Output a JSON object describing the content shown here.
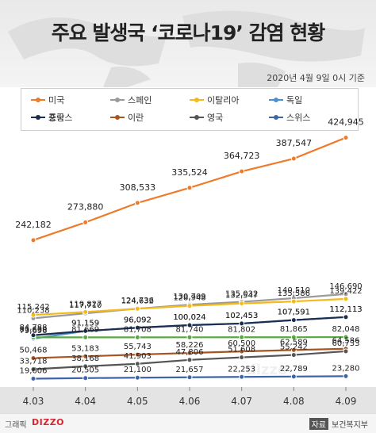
{
  "header": {
    "title": "주요 발생국 ‘코로나19’ 감염 현황",
    "date_note": "2020년 4월 9일 0시 기준"
  },
  "footer": {
    "brand_prefix": "그래픽",
    "brand_logo": "DIZZO",
    "source_tag": "자료",
    "source_text": "보건복지부"
  },
  "watermark": "dizzo",
  "chart_data": {
    "type": "line",
    "x": [
      "4.03",
      "4.04",
      "4.05",
      "4.06",
      "4.07",
      "4.08",
      "4.09"
    ],
    "y_scale": "broken (0–150,000 compressed; 150,000–430,000 expanded)",
    "grid": false,
    "legend_position": "top",
    "series": [
      {
        "name": "미국",
        "color": "#ee7b2a",
        "values": [
          242182,
          273880,
          308533,
          335524,
          364723,
          387547,
          424945
        ]
      },
      {
        "name": "스페인",
        "color": "#9a9a9a",
        "values": [
          110238,
          117710,
          124736,
          130709,
          135032,
          140510,
          146690
        ]
      },
      {
        "name": "이탈리아",
        "color": "#f5b918",
        "values": [
          115242,
          119827,
          124632,
          128948,
          132547,
          135586,
          139422
        ]
      },
      {
        "name": "독일",
        "color": "#4b8fd6",
        "values": [
          79696,
          91159,
          96092,
          100024,
          102453,
          107591,
          112113
        ]
      },
      {
        "name": "중국",
        "color": "#57a93e",
        "values": [
          81639,
          81669,
          81708,
          81740,
          81802,
          81865,
          82048
        ]
      },
      {
        "name": "프랑스",
        "color": "#1c2e4f",
        "values": [
          84788,
          91159,
          96092,
          100024,
          102453,
          107591,
          112113
        ]
      },
      {
        "name": "이란",
        "color": "#a7541f",
        "values": [
          50468,
          53183,
          55743,
          58226,
          60500,
          62589,
          64586
        ]
      },
      {
        "name": "영국",
        "color": "#555555",
        "values": [
          33718,
          38168,
          41903,
          47806,
          51608,
          55242,
          60733
        ]
      },
      {
        "name": "스위스",
        "color": "#3f65a8",
        "values": [
          19606,
          20505,
          21100,
          21657,
          22253,
          22789,
          23280
        ]
      }
    ]
  }
}
